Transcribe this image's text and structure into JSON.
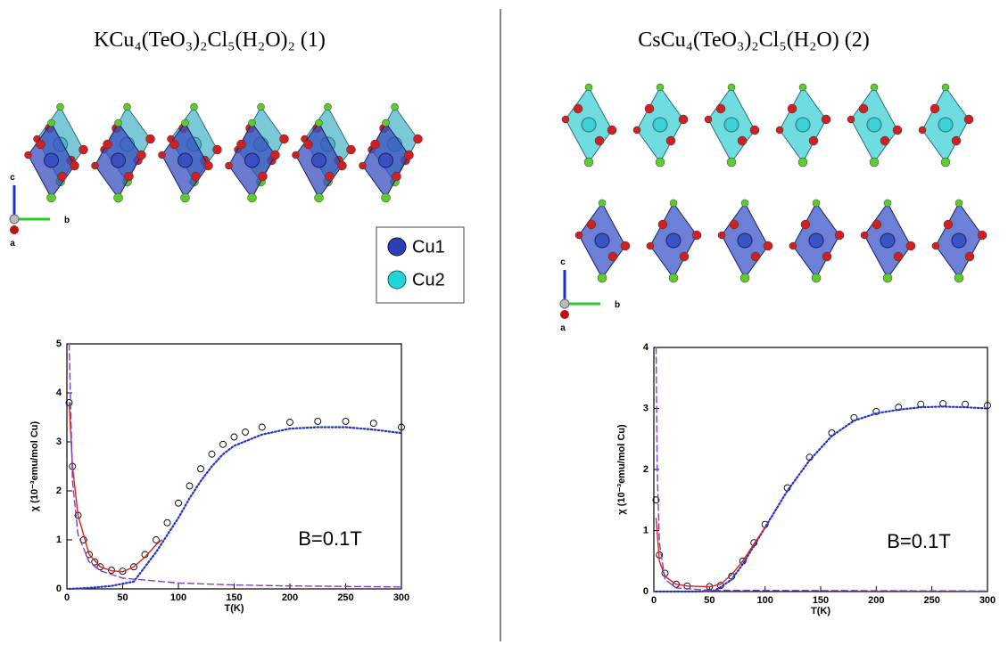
{
  "panels": [
    {
      "title": "KCu₄(TeO₃)₂Cl₅(H₂O)₂ (1)",
      "axes": [
        "c",
        "b",
        "a"
      ]
    },
    {
      "title": "CsCu₄(TeO₃)₂Cl₅(H₂O) (2)",
      "axes": [
        "c",
        "b",
        "a"
      ]
    }
  ],
  "legend": [
    "Cu1",
    "Cu2"
  ],
  "chart_data": [
    {
      "type": "scatter",
      "xlabel": "T(K)",
      "ylabel": "χ (10⁻³emu/mol Cu)",
      "annotation": "B=0.1T",
      "xlim": [
        0,
        300
      ],
      "xticks": [
        0,
        50,
        100,
        150,
        200,
        250,
        300
      ],
      "ylim": [
        0,
        5
      ],
      "yticks": [
        0,
        1,
        2,
        3,
        4,
        5
      ],
      "series": [
        {
          "style": "circle",
          "color": "#000000",
          "x": [
            2,
            5,
            10,
            15,
            20,
            25,
            30,
            40,
            50,
            60,
            70,
            80,
            90,
            100,
            110,
            120,
            130,
            140,
            150,
            160,
            175,
            200,
            225,
            250,
            275,
            300
          ],
          "values": [
            3.8,
            2.5,
            1.5,
            1.0,
            0.7,
            0.55,
            0.45,
            0.38,
            0.36,
            0.45,
            0.7,
            1.0,
            1.35,
            1.75,
            2.1,
            2.45,
            2.75,
            2.95,
            3.1,
            3.2,
            3.3,
            3.4,
            3.42,
            3.42,
            3.38,
            3.3
          ]
        },
        {
          "style": "dotted",
          "color": "#1f2fd0",
          "x": [
            2,
            20,
            40,
            60,
            70,
            80,
            90,
            100,
            110,
            120,
            130,
            140,
            150,
            175,
            200,
            225,
            250,
            275,
            300
          ],
          "values": [
            0,
            0.02,
            0.06,
            0.15,
            0.45,
            0.75,
            1.1,
            1.45,
            1.85,
            2.2,
            2.5,
            2.75,
            2.92,
            3.15,
            3.27,
            3.3,
            3.3,
            3.25,
            3.18
          ]
        },
        {
          "style": "line",
          "color": "#e02020",
          "x": [
            2,
            5,
            10,
            20,
            30,
            40,
            50,
            60,
            70,
            80,
            85
          ],
          "values": [
            3.8,
            2.5,
            1.5,
            0.7,
            0.45,
            0.37,
            0.35,
            0.45,
            0.65,
            0.9,
            1.0
          ]
        },
        {
          "style": "dashed",
          "color": "#7a3fd0",
          "x": [
            2,
            5,
            10,
            20,
            30,
            50,
            100,
            150,
            200,
            300
          ],
          "values": [
            5,
            2.2,
            1.1,
            0.55,
            0.37,
            0.22,
            0.12,
            0.08,
            0.06,
            0.04
          ]
        }
      ]
    },
    {
      "type": "scatter",
      "xlabel": "T(K)",
      "ylabel": "χ (10⁻³emu/mol Cu)",
      "annotation": "B=0.1T",
      "xlim": [
        0,
        300
      ],
      "xticks": [
        0,
        50,
        100,
        150,
        200,
        250,
        300
      ],
      "ylim": [
        0,
        4
      ],
      "yticks": [
        0,
        1,
        2,
        3,
        4
      ],
      "series": [
        {
          "style": "circle",
          "color": "#000000",
          "x": [
            2,
            5,
            10,
            20,
            30,
            50,
            60,
            70,
            80,
            90,
            100,
            120,
            140,
            160,
            180,
            200,
            220,
            240,
            260,
            280,
            300
          ],
          "values": [
            1.5,
            0.6,
            0.3,
            0.12,
            0.09,
            0.08,
            0.1,
            0.25,
            0.5,
            0.8,
            1.1,
            1.7,
            2.2,
            2.6,
            2.85,
            2.95,
            3.02,
            3.07,
            3.08,
            3.07,
            3.05
          ]
        },
        {
          "style": "dotted",
          "color": "#1f2fd0",
          "x": [
            2,
            40,
            55,
            60,
            70,
            80,
            90,
            100,
            120,
            140,
            160,
            180,
            200,
            220,
            240,
            260,
            280,
            300
          ],
          "values": [
            0,
            0,
            0.02,
            0.07,
            0.2,
            0.45,
            0.75,
            1.05,
            1.65,
            2.15,
            2.55,
            2.8,
            2.92,
            2.98,
            3.02,
            3.03,
            3.02,
            3.0
          ]
        },
        {
          "style": "line",
          "color": "#e02020",
          "x": [
            2,
            5,
            10,
            20,
            30,
            50,
            60,
            70,
            80,
            90,
            100
          ],
          "values": [
            1.2,
            0.5,
            0.25,
            0.12,
            0.09,
            0.08,
            0.12,
            0.28,
            0.5,
            0.78,
            1.05
          ]
        },
        {
          "style": "dashed",
          "color": "#7a3fd0",
          "x": [
            2,
            3,
            5,
            10,
            20,
            50,
            300
          ],
          "values": [
            4,
            2,
            0.8,
            0.2,
            0.06,
            0.02,
            0.01
          ]
        }
      ]
    }
  ]
}
